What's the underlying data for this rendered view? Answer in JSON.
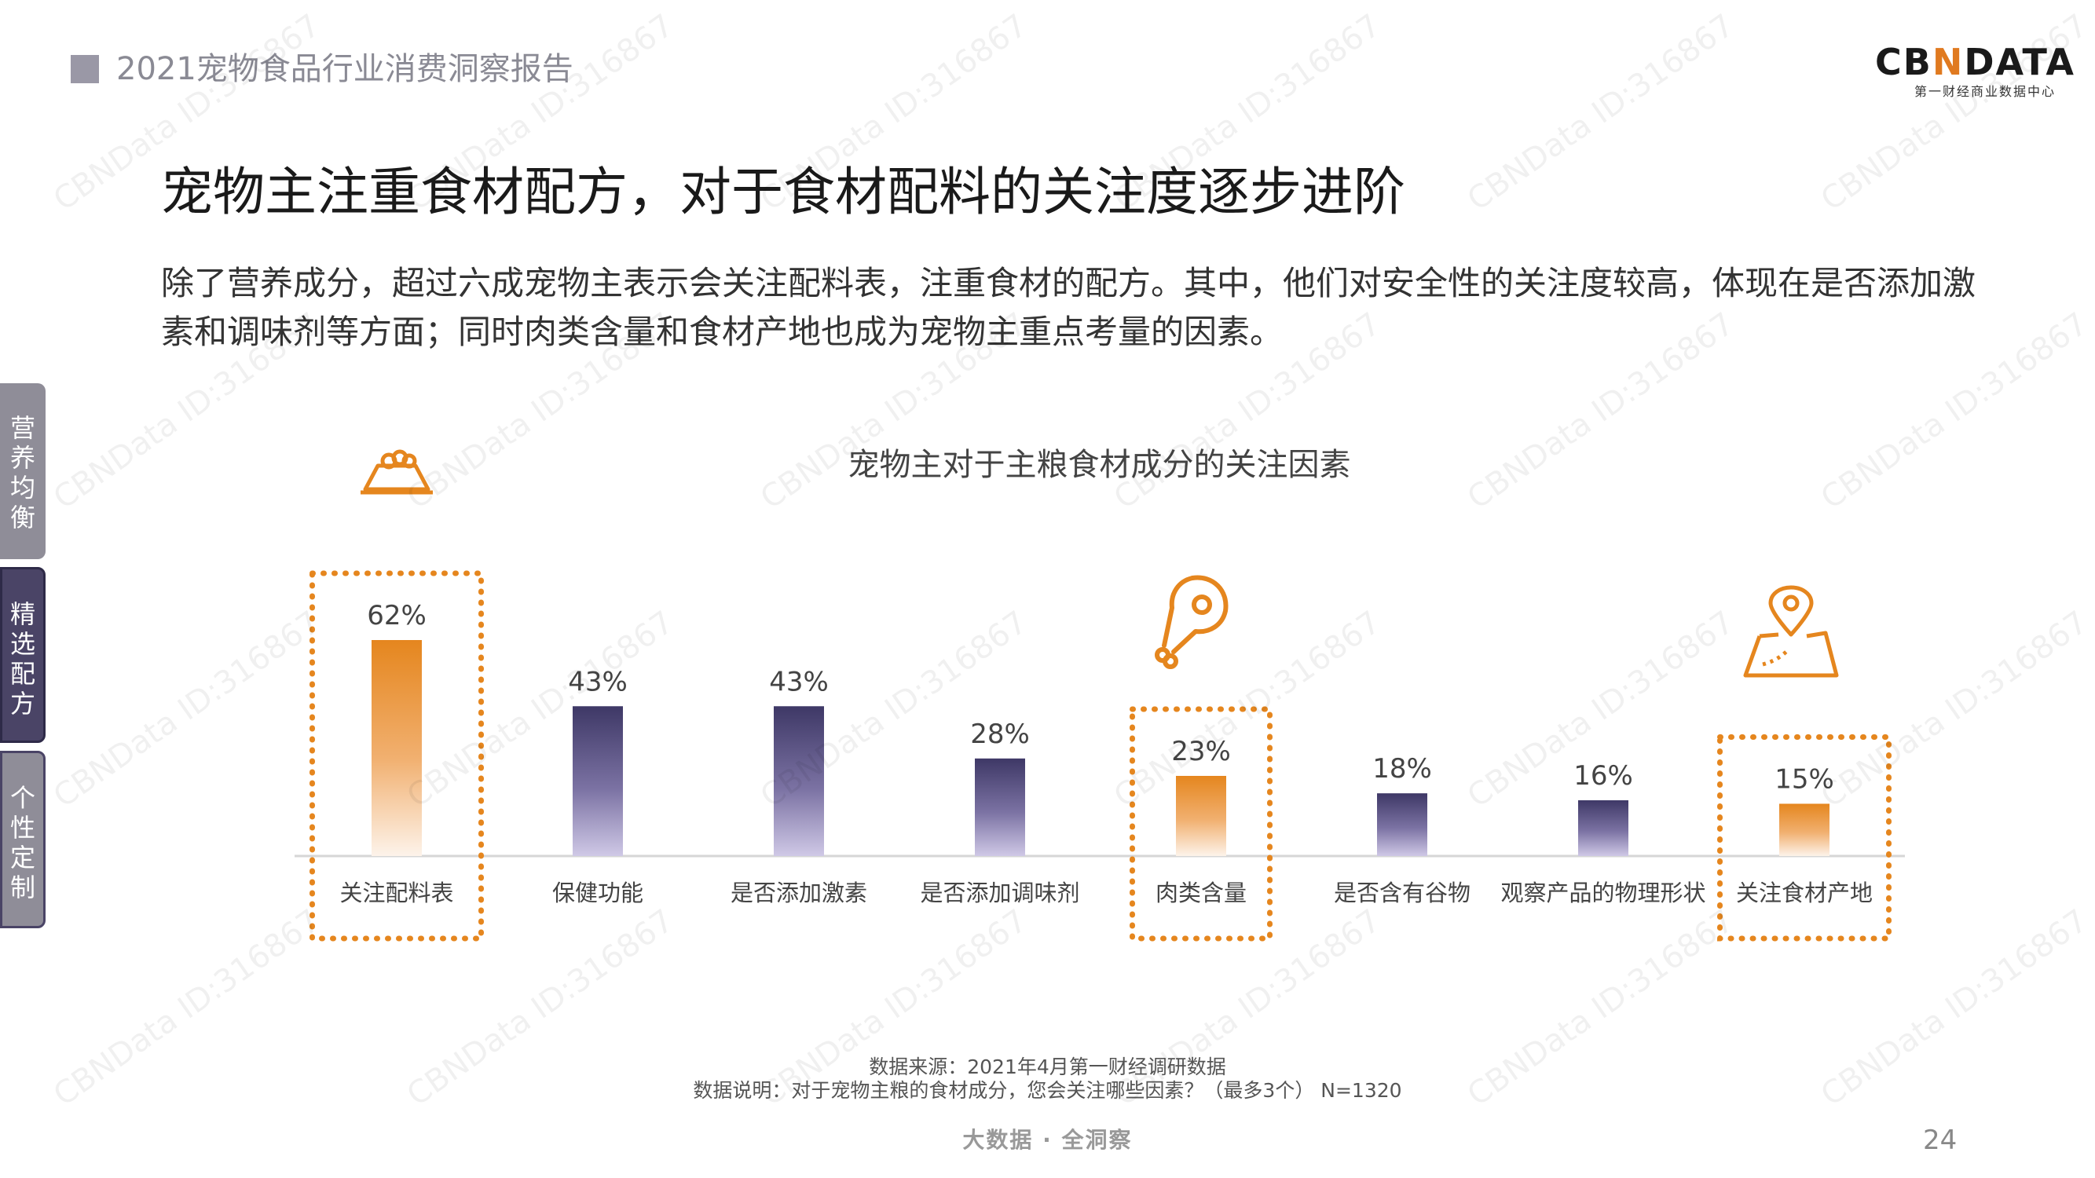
{
  "header": {
    "report_title": "2021宠物食品行业消费洞察报告",
    "logo_left": "CB",
    "logo_slash": "N",
    "logo_right": "DATA",
    "logo_subtitle": "第一财经商业数据中心"
  },
  "headline": "宠物主注重食材配方，对于食材配料的关注度逐步进阶",
  "body_text": "除了营养成分，超过六成宠物主表示会关注配料表，注重食材的配方。其中，他们对安全性的关注度较高，体现在是否添加激素和调味剂等方面；同时肉类含量和食材产地也成为宠物主重点考量的因素。",
  "side_tabs": [
    "营养均衡",
    "精选配方",
    "个性定制"
  ],
  "chart_data": {
    "type": "bar",
    "title": "宠物主对于主粮食材成分的关注因素",
    "categories": [
      "关注配料表",
      "保健功能",
      "是否添加激素",
      "是否添加调味剂",
      "肉类含量",
      "是否含有谷物",
      "观察产品的物理形状",
      "关注食材产地"
    ],
    "values": [
      62,
      43,
      43,
      28,
      23,
      18,
      16,
      15
    ],
    "value_labels": [
      "62%",
      "43%",
      "43%",
      "28%",
      "23%",
      "18%",
      "16%",
      "15%"
    ],
    "highlighted": [
      0,
      4,
      7
    ],
    "ylim": [
      0,
      62
    ],
    "colors": {
      "highlight": "#e5861e",
      "normal": "#463f6d",
      "outline": "#e5861e"
    },
    "icons": [
      "bowl-icon",
      "meat-leg-icon",
      "map-pin-icon"
    ]
  },
  "footer": {
    "source": "数据来源：2021年4月第一财经调研数据",
    "note": "数据说明：对于宠物主粮的食材成分，您会关注哪些因素？（最多3个） N=1320",
    "slogan": "大数据 · 全洞察",
    "page_number": "24"
  },
  "watermark": "CBNData ID:316867"
}
